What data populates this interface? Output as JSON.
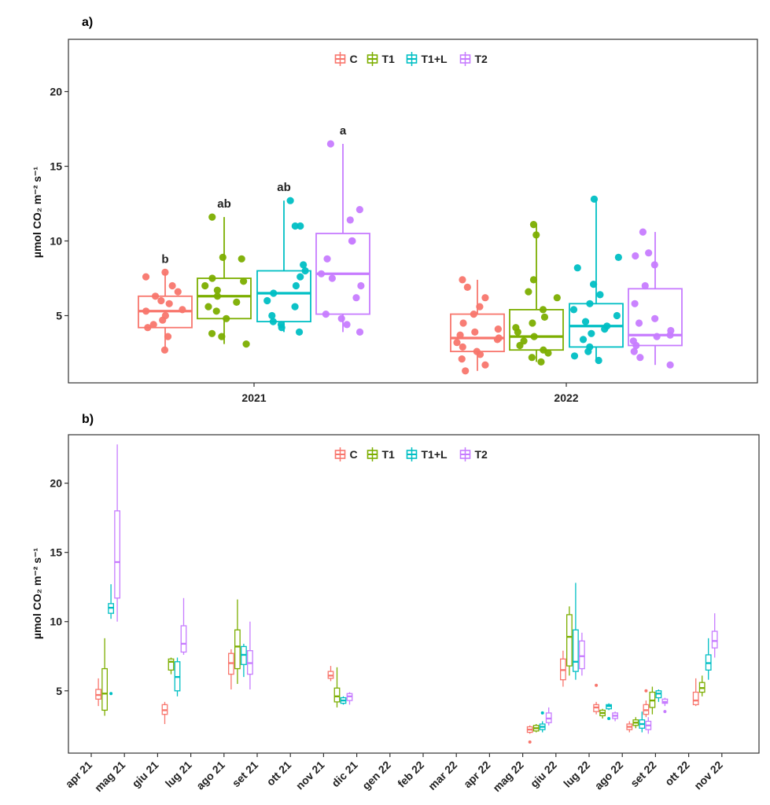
{
  "colors": {
    "C": "#F8766D",
    "T1": "#7CAE00",
    "T1+L": "#00BFC4",
    "T2": "#C77CFF"
  },
  "legend": [
    "C",
    "T1",
    "T1+L",
    "T2"
  ],
  "panel_a": {
    "label": "a)",
    "ylabel": "µmol CO₂ m⁻² s⁻¹",
    "yticks": [
      5,
      10,
      15,
      20
    ],
    "xtick_labels": [
      "2021",
      "2022"
    ]
  },
  "panel_b": {
    "label": "b)",
    "ylabel": "µmol CO₂ m⁻² s⁻¹",
    "yticks": [
      5,
      10,
      15,
      20
    ],
    "xtick_labels": [
      "apr 21",
      "mag 21",
      "giu 21",
      "lug 21",
      "ago 21",
      "set 21",
      "ott 21",
      "nov 21",
      "dic 21",
      "gen 22",
      "feb 22",
      "mar 22",
      "apr 22",
      "mag 22",
      "giu 22",
      "lug 22",
      "ago 22",
      "set 22",
      "ott 22",
      "nov 22"
    ]
  },
  "chart_data": [
    {
      "type": "boxplot",
      "title": "a)",
      "ylabel": "µmol CO₂ m⁻² s⁻¹",
      "ylim": [
        0.5,
        23.5
      ],
      "categories": [
        "2021",
        "2022"
      ],
      "legend_position": "top",
      "series": [
        {
          "name": "C",
          "boxes": [
            {
              "category": "2021",
              "min": 2.7,
              "q1": 4.2,
              "median": 5.3,
              "q3": 6.3,
              "max": 7.9,
              "letter": "b",
              "points": [
                2.7,
                3.6,
                4.2,
                4.4,
                4.7,
                5.0,
                5.3,
                5.4,
                5.8,
                6.0,
                6.3,
                6.6,
                7.0,
                7.6,
                7.9
              ]
            },
            {
              "category": "2022",
              "min": 1.3,
              "q1": 2.6,
              "median": 3.5,
              "q3": 5.1,
              "max": 7.4,
              "points": [
                1.3,
                1.7,
                2.1,
                2.4,
                2.6,
                2.9,
                3.2,
                3.4,
                3.5,
                3.7,
                3.9,
                4.1,
                4.5,
                5.1,
                5.6,
                6.2,
                6.9,
                7.4
              ]
            }
          ]
        },
        {
          "name": "T1",
          "boxes": [
            {
              "category": "2021",
              "min": 3.1,
              "q1": 4.8,
              "median": 6.3,
              "q3": 7.5,
              "max": 11.6,
              "letter": "ab",
              "points": [
                3.1,
                3.6,
                3.8,
                4.8,
                5.3,
                5.6,
                5.9,
                6.3,
                6.7,
                7.0,
                7.3,
                7.5,
                8.8,
                8.9,
                11.6
              ]
            },
            {
              "category": "2022",
              "min": 1.9,
              "q1": 2.7,
              "median": 3.6,
              "q3": 5.4,
              "max": 11.1,
              "points": [
                1.9,
                2.2,
                2.5,
                2.7,
                3.0,
                3.3,
                3.6,
                3.9,
                4.2,
                4.5,
                4.9,
                5.4,
                6.2,
                6.6,
                7.4,
                10.4,
                11.1
              ]
            }
          ]
        },
        {
          "name": "T1+L",
          "boxes": [
            {
              "category": "2021",
              "min": 3.9,
              "q1": 4.6,
              "median": 6.5,
              "q3": 8.0,
              "max": 12.7,
              "letter": "ab",
              "points": [
                3.9,
                4.2,
                4.4,
                4.6,
                5.0,
                5.6,
                6.0,
                6.5,
                7.0,
                7.6,
                8.0,
                8.4,
                11.0,
                11.0,
                12.7
              ]
            },
            {
              "category": "2022",
              "min": 2.0,
              "q1": 2.9,
              "median": 4.3,
              "q3": 5.8,
              "max": 12.8,
              "points": [
                2.0,
                2.3,
                2.6,
                2.9,
                3.4,
                3.8,
                4.1,
                4.3,
                4.6,
                5.0,
                5.4,
                5.8,
                6.4,
                7.1,
                8.2,
                8.9,
                12.8
              ]
            }
          ]
        },
        {
          "name": "T2",
          "boxes": [
            {
              "category": "2021",
              "min": 3.9,
              "q1": 5.1,
              "median": 7.8,
              "q3": 10.5,
              "max": 16.5,
              "letter": "a",
              "points": [
                3.9,
                4.4,
                4.8,
                5.1,
                6.2,
                7.0,
                7.5,
                7.8,
                8.8,
                10.0,
                10.0,
                11.4,
                12.1,
                16.5
              ]
            },
            {
              "category": "2022",
              "min": 1.7,
              "q1": 3.0,
              "median": 3.7,
              "q3": 6.8,
              "max": 10.6,
              "points": [
                1.7,
                2.2,
                2.6,
                3.0,
                3.3,
                3.6,
                3.7,
                4.0,
                4.5,
                4.8,
                5.8,
                7.0,
                8.4,
                9.0,
                9.2,
                10.6
              ]
            }
          ]
        }
      ]
    },
    {
      "type": "boxplot",
      "title": "b)",
      "ylabel": "µmol CO₂ m⁻² s⁻¹",
      "ylim": [
        0.5,
        23.5
      ],
      "legend_position": "top",
      "categories": [
        "apr 21",
        "mag 21",
        "giu 21",
        "lug 21",
        "ago 21",
        "set 21",
        "ott 21",
        "nov 21",
        "dic 21",
        "gen 22",
        "feb 22",
        "mar 22",
        "apr 22",
        "mag 22",
        "giu 22",
        "lug 22",
        "ago 22",
        "set 22",
        "ott 22",
        "nov 22"
      ],
      "groups": [
        {
          "month_index": 0.5,
          "boxes": {
            "C": {
              "min": 3.9,
              "q1": 4.4,
              "median": 4.7,
              "q3": 5.1,
              "max": 5.9
            },
            "T1": {
              "min": 3.2,
              "q1": 3.6,
              "median": 4.8,
              "q3": 6.6,
              "max": 8.8
            },
            "T1+L": {
              "min": 10.2,
              "q1": 10.6,
              "median": 11.0,
              "q3": 11.3,
              "max": 12.7,
              "outliers": [
                4.8
              ]
            },
            "T2": {
              "min": 10.0,
              "q1": 11.7,
              "median": 14.3,
              "q3": 18.0,
              "max": 22.8
            }
          }
        },
        {
          "month_index": 2.5,
          "boxes": {
            "C": {
              "min": 2.6,
              "q1": 3.3,
              "median": 3.6,
              "q3": 4.0,
              "max": 4.2
            },
            "T1": {
              "min": 6.2,
              "q1": 6.5,
              "median": 7.1,
              "q3": 7.3,
              "max": 7.4
            },
            "T1+L": {
              "min": 4.6,
              "q1": 5.0,
              "median": 6.0,
              "q3": 7.1,
              "max": 7.4
            },
            "T2": {
              "min": 7.6,
              "q1": 7.8,
              "median": 8.4,
              "q3": 9.7,
              "max": 11.7
            }
          }
        },
        {
          "month_index": 4.5,
          "boxes": {
            "C": {
              "min": 5.1,
              "q1": 6.2,
              "median": 7.0,
              "q3": 7.7,
              "max": 8.0
            },
            "T1": {
              "min": 5.5,
              "q1": 6.6,
              "median": 8.2,
              "q3": 9.4,
              "max": 11.6
            },
            "T1+L": {
              "min": 6.0,
              "q1": 6.9,
              "median": 7.6,
              "q3": 8.2,
              "max": 8.4
            },
            "T2": {
              "min": 5.1,
              "q1": 6.2,
              "median": 7.0,
              "q3": 7.9,
              "max": 10.0
            }
          }
        },
        {
          "month_index": 7.5,
          "boxes": {
            "C": {
              "min": 5.7,
              "q1": 5.9,
              "median": 6.1,
              "q3": 6.4,
              "max": 6.8
            },
            "T1": {
              "min": 3.8,
              "q1": 4.2,
              "median": 4.6,
              "q3": 5.2,
              "max": 6.7
            },
            "T1+L": {
              "min": 4.0,
              "q1": 4.1,
              "median": 4.3,
              "q3": 4.5,
              "max": 4.6
            },
            "T2": {
              "min": 4.0,
              "q1": 4.3,
              "median": 4.6,
              "q3": 4.8,
              "max": 4.9
            }
          }
        },
        {
          "month_index": 13.5,
          "boxes": {
            "C": {
              "min": 1.9,
              "q1": 2.0,
              "median": 2.2,
              "q3": 2.4,
              "max": 2.5,
              "outliers": [
                1.3
              ]
            },
            "T1": {
              "min": 2.0,
              "q1": 2.1,
              "median": 2.3,
              "q3": 2.5,
              "max": 2.6
            },
            "T1+L": {
              "min": 2.0,
              "q1": 2.2,
              "median": 2.4,
              "q3": 2.6,
              "max": 2.8,
              "outliers": [
                3.4
              ]
            },
            "T2": {
              "min": 2.5,
              "q1": 2.7,
              "median": 3.0,
              "q3": 3.4,
              "max": 3.8
            }
          }
        },
        {
          "month_index": 14.5,
          "boxes": {
            "C": {
              "min": 5.3,
              "q1": 5.8,
              "median": 6.5,
              "q3": 7.3,
              "max": 7.9
            },
            "T1": {
              "min": 6.1,
              "q1": 6.8,
              "median": 8.9,
              "q3": 10.5,
              "max": 11.1
            },
            "T1+L": {
              "min": 5.8,
              "q1": 6.4,
              "median": 7.1,
              "q3": 9.4,
              "max": 12.8
            },
            "T2": {
              "min": 6.1,
              "q1": 6.6,
              "median": 7.5,
              "q3": 8.6,
              "max": 9.2
            }
          }
        },
        {
          "month_index": 15.5,
          "boxes": {
            "C": {
              "min": 3.3,
              "q1": 3.5,
              "median": 3.8,
              "q3": 4.0,
              "max": 4.2,
              "outliers": [
                5.4
              ]
            },
            "T1": {
              "min": 3.0,
              "q1": 3.2,
              "median": 3.4,
              "q3": 3.6,
              "max": 3.7
            },
            "T1+L": {
              "min": 3.6,
              "q1": 3.7,
              "median": 3.9,
              "q3": 4.0,
              "max": 4.1,
              "outliers": [
                3.0
              ]
            },
            "T2": {
              "min": 2.8,
              "q1": 3.0,
              "median": 3.2,
              "q3": 3.4,
              "max": 3.5
            }
          }
        },
        {
          "month_index": 16.5,
          "boxes": {
            "C": {
              "min": 2.0,
              "q1": 2.2,
              "median": 2.4,
              "q3": 2.6,
              "max": 2.8
            },
            "T1": {
              "min": 2.3,
              "q1": 2.5,
              "median": 2.7,
              "q3": 2.9,
              "max": 3.1
            },
            "T1+L": {
              "min": 2.0,
              "q1": 2.3,
              "median": 2.6,
              "q3": 2.9,
              "max": 3.5
            },
            "T2": {
              "min": 1.9,
              "q1": 2.2,
              "median": 2.5,
              "q3": 2.8,
              "max": 3.1
            }
          }
        },
        {
          "month_index": 17.0,
          "boxes": {
            "C": {
              "min": 3.1,
              "q1": 3.3,
              "median": 3.6,
              "q3": 4.0,
              "max": 4.3,
              "outliers": [
                5.0
              ]
            },
            "T1": {
              "min": 3.3,
              "q1": 3.8,
              "median": 4.3,
              "q3": 4.9,
              "max": 5.3
            },
            "T1+L": {
              "min": 4.2,
              "q1": 4.5,
              "median": 4.8,
              "q3": 5.0,
              "max": 5.1
            },
            "T2": {
              "min": 3.9,
              "q1": 4.1,
              "median": 4.2,
              "q3": 4.4,
              "max": 4.5,
              "outliers": [
                3.5
              ]
            }
          }
        },
        {
          "month_index": 18.5,
          "boxes": {
            "C": {
              "min": 3.9,
              "q1": 4.0,
              "median": 4.3,
              "q3": 4.9,
              "max": 5.9
            },
            "T1": {
              "min": 4.6,
              "q1": 4.9,
              "median": 5.2,
              "q3": 5.6,
              "max": 6.1
            },
            "T1+L": {
              "min": 5.8,
              "q1": 6.5,
              "median": 7.0,
              "q3": 7.6,
              "max": 8.8
            },
            "T2": {
              "min": 7.4,
              "q1": 8.1,
              "median": 8.6,
              "q3": 9.3,
              "max": 10.6
            }
          }
        }
      ]
    }
  ]
}
